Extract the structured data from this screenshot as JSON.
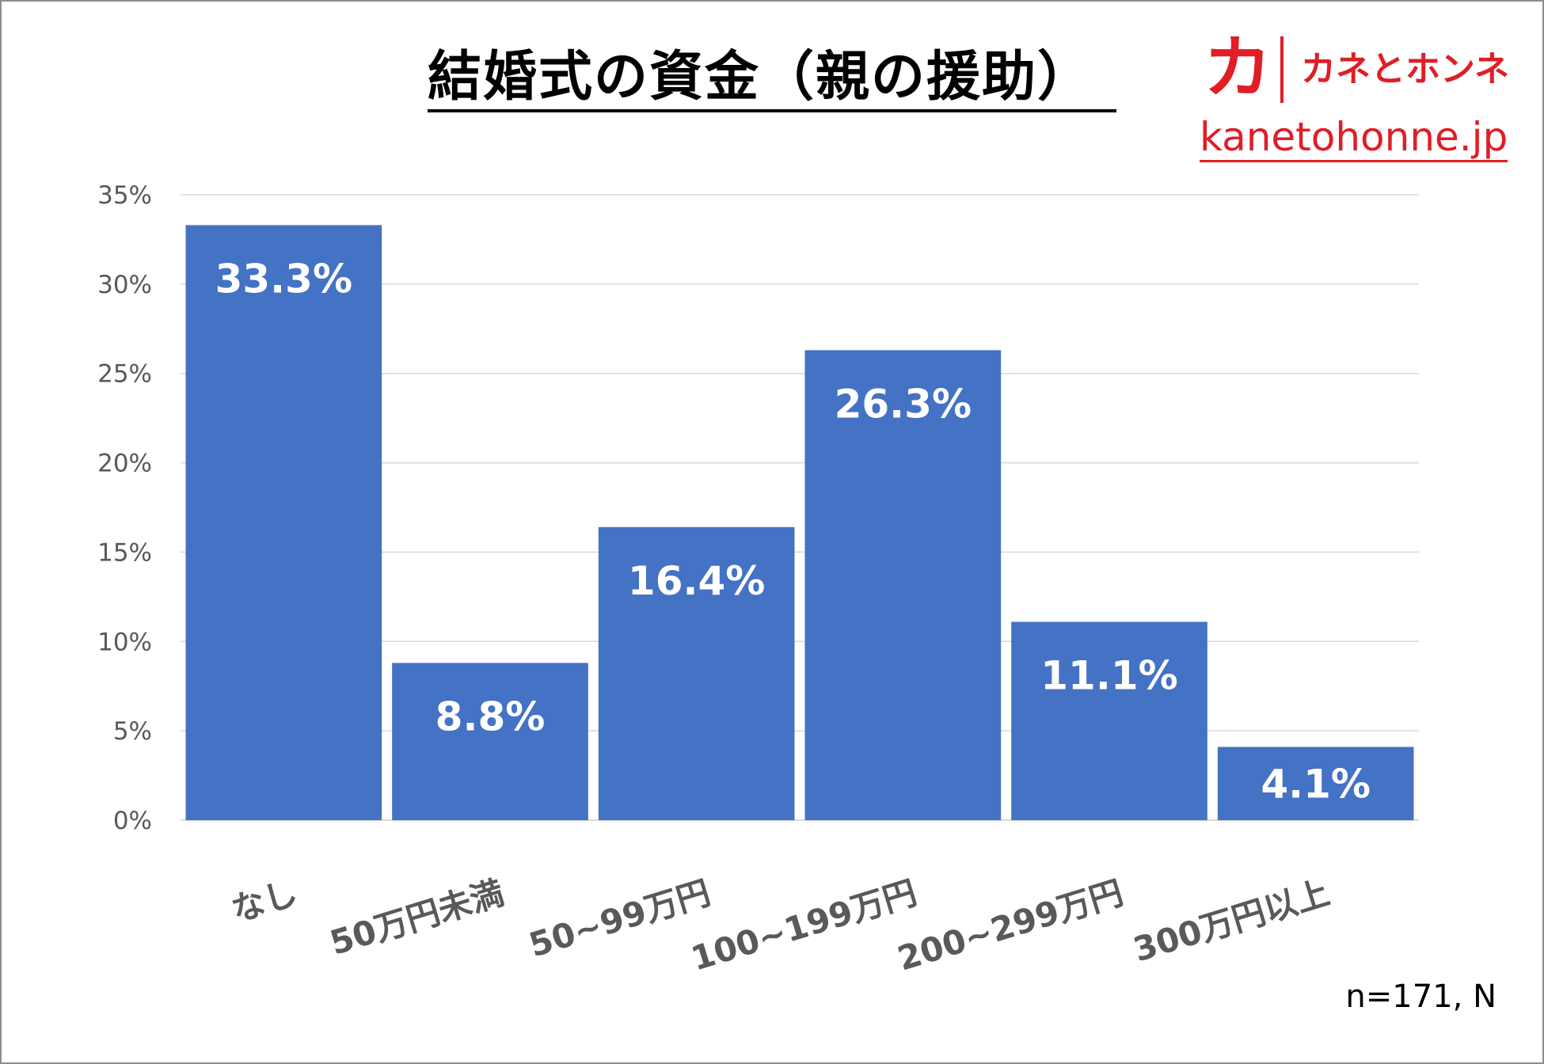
{
  "chart_data": {
    "type": "bar",
    "title": "結婚式の資金（親の援助）",
    "categories": [
      "なし",
      "50万円未満",
      "50~99万円",
      "100~199万円",
      "200~299万円",
      "300万円以上"
    ],
    "values": [
      33.3,
      8.8,
      16.4,
      26.3,
      11.1,
      4.1
    ],
    "value_labels": [
      "33.3%",
      "8.8%",
      "16.4%",
      "26.3%",
      "11.1%",
      "4.1%"
    ],
    "y_ticks": [
      "0%",
      "5%",
      "10%",
      "15%",
      "20%",
      "25%",
      "30%",
      "35%"
    ],
    "ylim": [
      0,
      35
    ],
    "grid": true,
    "xlabel": "",
    "ylabel": "",
    "bar_color": "#4472c4",
    "grid_color": "#d9d9d9",
    "note": "n=171, N"
  },
  "logo": {
    "mark": "カ",
    "name": "カネとホンネ",
    "url": "kanetohonne.jp",
    "color": "#e01e26"
  }
}
